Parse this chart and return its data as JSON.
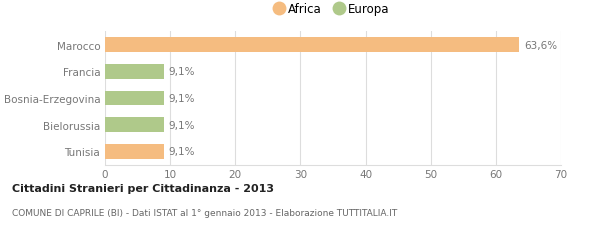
{
  "categories": [
    "Marocco",
    "Francia",
    "Bosnia-Erzegovina",
    "Bielorussia",
    "Tunisia"
  ],
  "values": [
    63.6,
    9.1,
    9.1,
    9.1,
    9.1
  ],
  "colors": [
    "#f5bc80",
    "#afc98a",
    "#afc98a",
    "#afc98a",
    "#f5bc80"
  ],
  "labels": [
    "63,6%",
    "9,1%",
    "9,1%",
    "9,1%",
    "9,1%"
  ],
  "legend": [
    {
      "label": "Africa",
      "color": "#f5bc80"
    },
    {
      "label": "Europa",
      "color": "#afc98a"
    }
  ],
  "xlim": [
    0,
    70
  ],
  "xticks": [
    0,
    10,
    20,
    30,
    40,
    50,
    60,
    70
  ],
  "title_bold": "Cittadini Stranieri per Cittadinanza - 2013",
  "subtitle": "COMUNE DI CAPRILE (BI) - Dati ISTAT al 1° gennaio 2013 - Elaborazione TUTTITALIA.IT",
  "bar_height": 0.55,
  "background_color": "#ffffff",
  "grid_color": "#dddddd",
  "text_color": "#777777",
  "label_fontsize": 7.5,
  "tick_fontsize": 7.5,
  "legend_fontsize": 8.5
}
